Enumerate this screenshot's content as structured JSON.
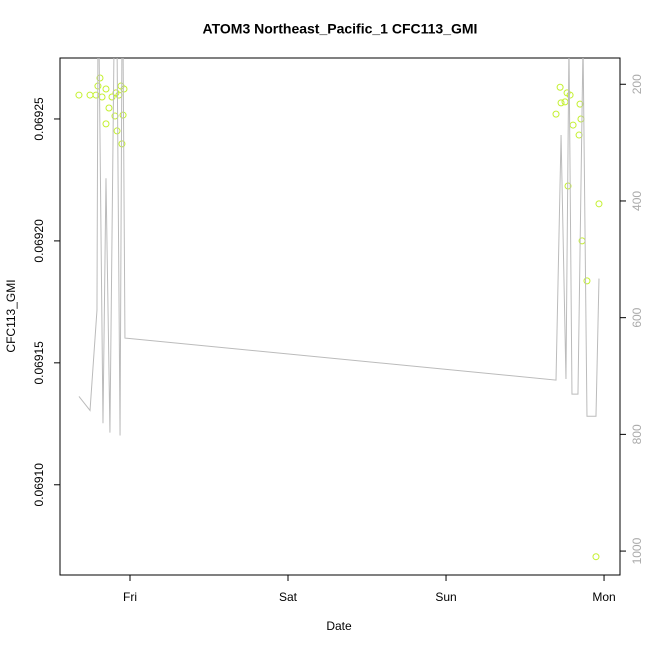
{
  "chart_data": {
    "type": "scatter",
    "title": "ATOM3 Northeast_Pacific_1 CFC113_GMI",
    "xlabel": "Date",
    "ylabel": "CFC113_GMI",
    "xlim": [
      -0.443,
      3.101
    ],
    "xticks": [
      {
        "value": 0,
        "label": "Fri"
      },
      {
        "value": 1,
        "label": "Sat"
      },
      {
        "value": 2,
        "label": "Sun"
      },
      {
        "value": 3,
        "label": "Mon"
      }
    ],
    "ylim": [
      0.069063,
      0.069275
    ],
    "yticks": [
      {
        "value": 0.0691,
        "label": "0.06910"
      },
      0.06915,
      {
        "value": 0.0692,
        "label": "0.06920"
      },
      0.06925
    ],
    "y2lim": [
      1041,
      155
    ],
    "y2ticks": [
      200,
      400,
      600,
      800,
      1000
    ],
    "series": [
      {
        "name": "CFC113_GMI",
        "color": "#c4f030",
        "x": [
          -0.323,
          -0.253,
          -0.215,
          -0.203,
          -0.19,
          -0.177,
          -0.152,
          -0.152,
          -0.133,
          -0.114,
          -0.095,
          -0.089,
          -0.082,
          -0.07,
          -0.057,
          -0.051,
          -0.044,
          -0.038,
          2.696,
          2.722,
          2.728,
          2.753,
          2.766,
          2.772,
          2.785,
          2.804,
          2.842,
          2.848,
          2.854,
          2.861,
          2.892,
          2.949,
          2.968
        ],
        "values": [
          0.0692598,
          0.0692598,
          0.0692598,
          0.0692635,
          0.0692668,
          0.069259,
          0.0692623,
          0.069248,
          0.0692545,
          0.069259,
          0.0692512,
          0.0692607,
          0.0692451,
          0.0692598,
          0.0692635,
          0.0692398,
          0.0692516,
          0.0692623,
          0.069252,
          0.069263,
          0.0692566,
          0.069257,
          0.0692607,
          0.0692225,
          0.0692598,
          0.0692475,
          0.0692434,
          0.0692561,
          0.06925,
          0.0692,
          0.0691836,
          0.0690705,
          0.0692152
        ]
      },
      {
        "axis": "y2",
        "color": "#bbbbbb",
        "x": [
          -0.323,
          -0.253,
          -0.209,
          -0.203,
          -0.196,
          -0.171,
          -0.152,
          -0.127,
          -0.101,
          -0.082,
          -0.063,
          -0.051,
          -0.044,
          -0.032,
          2.696,
          2.728,
          2.759,
          2.778,
          2.797,
          2.835,
          2.867,
          2.892,
          2.949,
          2.968
        ],
        "values": [
          735,
          759,
          587,
          130,
          130,
          781,
          361,
          797,
          130,
          130,
          802,
          130,
          130,
          635,
          707,
          287,
          705,
          130,
          731,
          731,
          130,
          769,
          769,
          533
        ]
      }
    ]
  }
}
